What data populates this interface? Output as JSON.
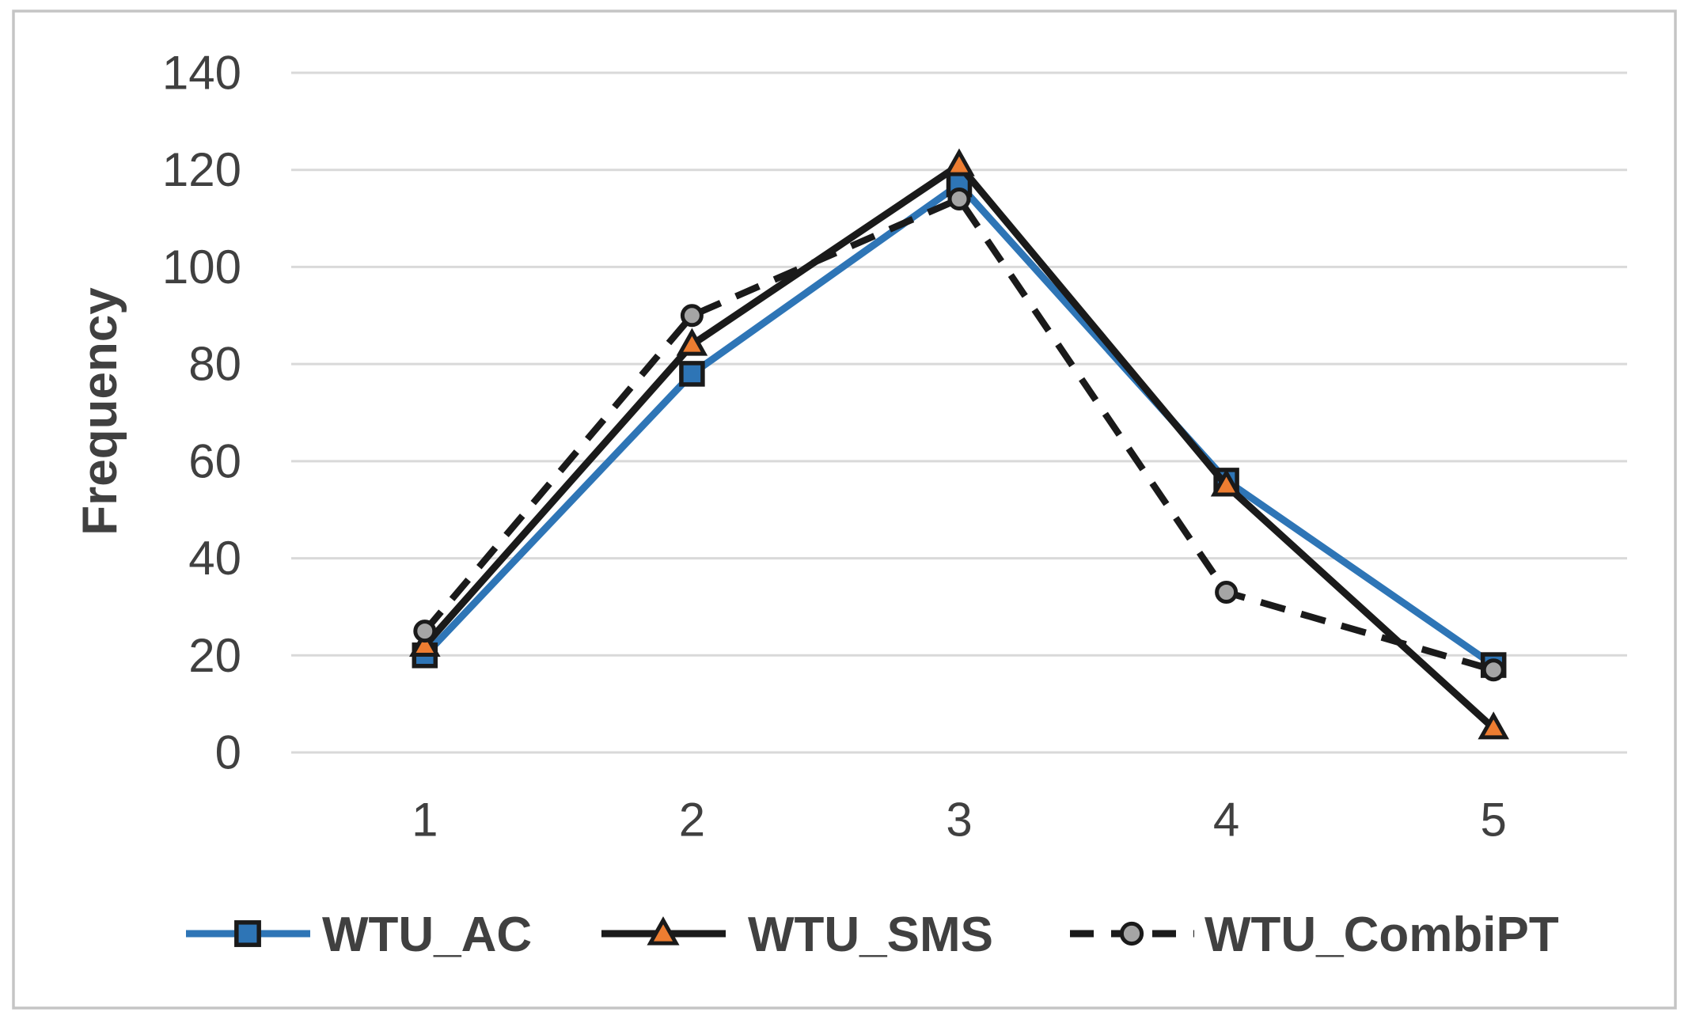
{
  "chart_data": {
    "type": "line",
    "title": "",
    "xlabel": "",
    "ylabel": "Frequency",
    "categories": [
      "1",
      "2",
      "3",
      "4",
      "5"
    ],
    "series": [
      {
        "name": "WTU_AC",
        "values": [
          20,
          78,
          117,
          56,
          18
        ],
        "line_color": "#2E75B6",
        "line_style": "solid",
        "marker": "square",
        "marker_fill": "#2E75B6",
        "marker_stroke": "#1A1A1A"
      },
      {
        "name": "WTU_SMS",
        "values": [
          22,
          84,
          121,
          55,
          5
        ],
        "line_color": "#1A1A1A",
        "line_style": "solid",
        "marker": "triangle",
        "marker_fill": "#ED7D31",
        "marker_stroke": "#1A1A1A"
      },
      {
        "name": "WTU_CombiPT",
        "values": [
          25,
          90,
          114,
          33,
          17
        ],
        "line_color": "#1A1A1A",
        "line_style": "dashed",
        "marker": "circle",
        "marker_fill": "#A5A5A5",
        "marker_stroke": "#1A1A1A"
      }
    ],
    "ylim": [
      0,
      140
    ],
    "yticks": [
      0,
      20,
      40,
      60,
      80,
      100,
      120,
      140
    ],
    "grid": true,
    "legend_position": "bottom"
  },
  "styles": {
    "text_color": "#404040",
    "grid_color": "#D9D9D9",
    "border_color": "#C5C5C5",
    "background": "#FFFFFF"
  }
}
